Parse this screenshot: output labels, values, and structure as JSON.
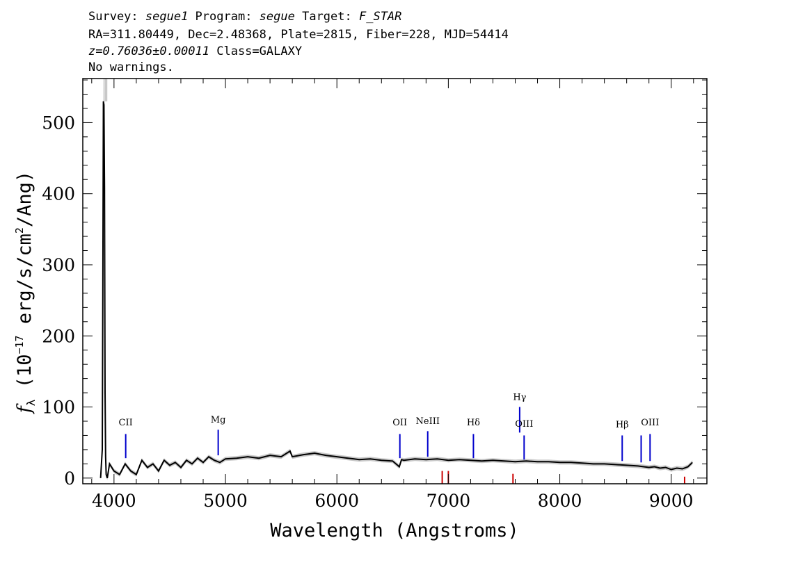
{
  "header": {
    "line1": [
      {
        "text": "Survey: ",
        "italic": false
      },
      {
        "text": "segue1",
        "italic": true
      },
      {
        "text": " Program: ",
        "italic": false
      },
      {
        "text": "segue",
        "italic": true
      },
      {
        "text": " Target: ",
        "italic": false
      },
      {
        "text": "F_STAR",
        "italic": true
      }
    ],
    "line2": "RA=311.80449, Dec=2.48368, Plate=2815, Fiber=228, MJD=54414",
    "line3_z": "z=0.76036±0.00011",
    "line3_class": " Class=GALAXY",
    "line4": "No warnings."
  },
  "chart_data": {
    "type": "line",
    "xlabel": "Wavelength (Angstroms)",
    "ylabel": "f_λ (10^-17 erg/s/cm^2/Ang)",
    "ylabel_parts": [
      "(10",
      "−17",
      " erg/s/cm",
      "2",
      "/Ang)"
    ],
    "ylabel_symbol": "f",
    "ylabel_symbol_sub": "λ",
    "xlim": [
      3720,
      9320
    ],
    "ylim": [
      -8,
      562
    ],
    "xticks": [
      4000,
      5000,
      6000,
      7000,
      8000,
      9000
    ],
    "yticks": [
      0,
      100,
      200,
      300,
      400,
      500
    ],
    "colors": {
      "spectrum": "#000000",
      "error_band": "#c8c8c8",
      "emission_marker": "#0000cc",
      "sky_marker": "#cc0000"
    },
    "series": [
      {
        "role": "spectrum",
        "x": [
          3880,
          3895,
          3900,
          3905,
          3910,
          3915,
          3920,
          3925,
          3930,
          3940,
          3960,
          3980,
          4000,
          4050,
          4100,
          4150,
          4200,
          4250,
          4300,
          4350,
          4400,
          4450,
          4500,
          4550,
          4600,
          4650,
          4700,
          4750,
          4800,
          4850,
          4900,
          4950,
          5000,
          5100,
          5200,
          5300,
          5400,
          5500,
          5580,
          5600,
          5700,
          5800,
          5900,
          6000,
          6100,
          6200,
          6300,
          6400,
          6500,
          6560,
          6580,
          6600,
          6700,
          6800,
          6900,
          7000,
          7100,
          7200,
          7300,
          7400,
          7500,
          7600,
          7700,
          7800,
          7900,
          8000,
          8100,
          8200,
          8300,
          8400,
          8500,
          8600,
          8700,
          8800,
          8850,
          8900,
          8950,
          9000,
          9050,
          9100,
          9150,
          9190
        ],
        "y": [
          0,
          40,
          260,
          530,
          525,
          410,
          120,
          30,
          5,
          0,
          20,
          15,
          10,
          5,
          20,
          10,
          5,
          25,
          15,
          20,
          10,
          25,
          18,
          22,
          15,
          25,
          20,
          28,
          22,
          30,
          25,
          22,
          27,
          28,
          30,
          28,
          32,
          30,
          38,
          30,
          33,
          35,
          32,
          30,
          28,
          26,
          27,
          25,
          24,
          16,
          26,
          25,
          27,
          26,
          27,
          25,
          26,
          25,
          24,
          25,
          24,
          23,
          24,
          23,
          23,
          22,
          22,
          21,
          20,
          20,
          19,
          18,
          17,
          15,
          16,
          14,
          15,
          12,
          14,
          13,
          16,
          22
        ]
      }
    ],
    "emission_lines": [
      {
        "label": "CII",
        "x": 4105,
        "y_top": 62,
        "y_bottom": 28,
        "label_y": 74
      },
      {
        "label": "Mg",
        "x": 4935,
        "y_top": 68,
        "y_bottom": 32,
        "label_y": 78
      },
      {
        "label": "OII",
        "x": 6565,
        "y_top": 62,
        "y_bottom": 28,
        "label_y": 74
      },
      {
        "label": "NeIII",
        "x": 6815,
        "y_top": 66,
        "y_bottom": 30,
        "label_y": 76
      },
      {
        "label": "Hδ",
        "x": 7225,
        "y_top": 62,
        "y_bottom": 28,
        "label_y": 74
      },
      {
        "label": "Hγ",
        "x": 7640,
        "y_top": 100,
        "y_bottom": 64,
        "label_y": 110
      },
      {
        "label": "OIII",
        "x": 7680,
        "y_top": 60,
        "y_bottom": 26,
        "label_y": 72
      },
      {
        "label": "Hβ",
        "x": 8560,
        "y_top": 60,
        "y_bottom": 24,
        "label_y": 71
      },
      {
        "label": "OIII",
        "x": 8730,
        "y_top": 60,
        "y_bottom": 22,
        "label_y": null
      },
      {
        "label": "OIII",
        "x": 8810,
        "y_top": 62,
        "y_bottom": 24,
        "label_y": 74
      }
    ],
    "sky_lines": [
      {
        "x": 6945,
        "y_top": 10
      },
      {
        "x": 7000,
        "y_top": 10
      },
      {
        "x": 7580,
        "y_top": 6
      },
      {
        "x": 9120,
        "y_top": 2
      }
    ]
  }
}
